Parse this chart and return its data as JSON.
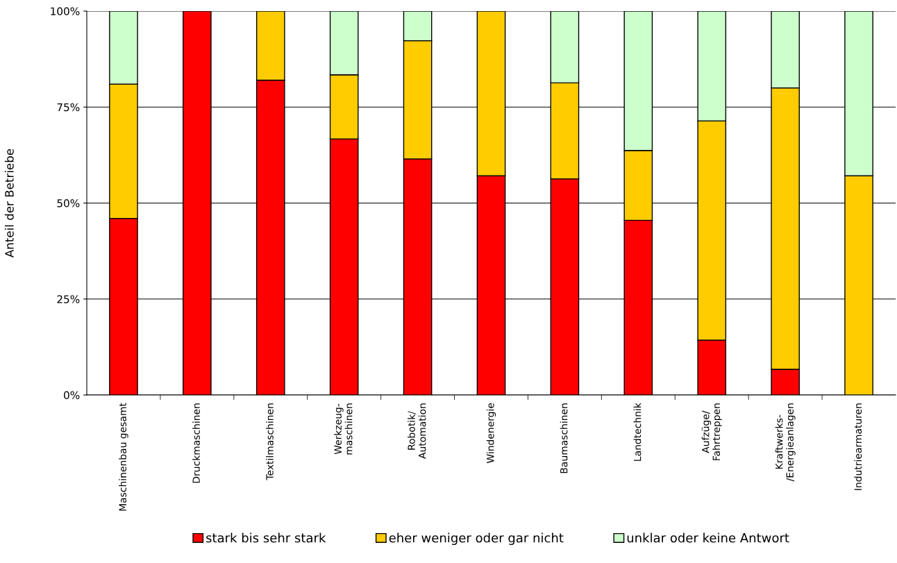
{
  "chart_data": {
    "type": "bar",
    "stacked": true,
    "ylabel": "Anteil der Betriebe",
    "categories": [
      "Maschinenbau gesamt",
      "Druckmaschinen",
      "Textilmaschinen",
      "Werkzeug-\nmaschinen",
      "Robotik/\nAutomation",
      "Windenergie",
      "Baumaschinen",
      "Landtechnik",
      "Aufzüge/\nFahrtreppen",
      "Kraftwerks-\n/Energieanlagen",
      "Indutriearmaturen"
    ],
    "series": [
      {
        "name": "stark bis sehr stark",
        "color": "#ff0000",
        "values": [
          46,
          100,
          82,
          66.7,
          61.5,
          57.1,
          56.3,
          45.5,
          14.3,
          6.7,
          0
        ]
      },
      {
        "name": "eher weniger oder gar nicht",
        "color": "#ffcc00",
        "values": [
          35,
          0,
          18,
          16.7,
          30.8,
          42.9,
          25,
          18.2,
          57.1,
          73.3,
          57.1
        ]
      },
      {
        "name": "unklar oder keine Antwort",
        "color": "#ccffcc",
        "values": [
          19,
          0,
          0,
          16.6,
          7.7,
          0,
          18.7,
          36.3,
          28.6,
          20,
          42.9
        ]
      }
    ],
    "ylim": [
      0,
      100
    ],
    "yticks": [
      {
        "value": 0,
        "label": "0%"
      },
      {
        "value": 25,
        "label": "25%"
      },
      {
        "value": 50,
        "label": "50%"
      },
      {
        "value": 75,
        "label": "75%"
      },
      {
        "value": 100,
        "label": "100%"
      }
    ],
    "grid": "y",
    "legend": "bottom"
  }
}
